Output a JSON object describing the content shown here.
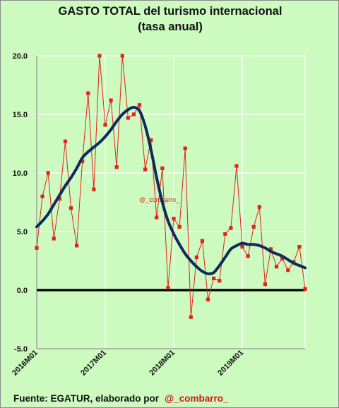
{
  "title_line1": "GASTO TOTAL del turismo internacional",
  "title_line2": "(tasa anual)",
  "watermark": "@_combarro_",
  "footer": {
    "source": "Fuente: EGATUR, elaborado por",
    "handle": "@_combarro_"
  },
  "colors": {
    "background": "#ccfabf",
    "raw_series": "#e2231a",
    "trend_series": "#0e2a5e",
    "zero_line": "#000000",
    "grid": "#ffffff"
  },
  "chart_data": {
    "type": "line",
    "title": "GASTO TOTAL del turismo internacional (tasa anual)",
    "xlabel": "",
    "ylabel": "",
    "ylim": [
      -5,
      20
    ],
    "yticks": [
      "20.0",
      "15.0",
      "10.0",
      "5.0",
      "0.0",
      "-5.0"
    ],
    "xticks": [
      "2016M01",
      "2017M01",
      "2018M01",
      "2019M01"
    ],
    "grid": true,
    "legend": "none",
    "x": [
      "2016M01",
      "2016M02",
      "2016M03",
      "2016M04",
      "2016M05",
      "2016M06",
      "2016M07",
      "2016M08",
      "2016M09",
      "2016M10",
      "2016M11",
      "2016M12",
      "2017M01",
      "2017M02",
      "2017M03",
      "2017M04",
      "2017M05",
      "2017M06",
      "2017M07",
      "2017M08",
      "2017M09",
      "2017M10",
      "2017M11",
      "2017M12",
      "2018M01",
      "2018M02",
      "2018M03",
      "2018M04",
      "2018M05",
      "2018M06",
      "2018M07",
      "2018M08",
      "2018M09",
      "2018M10",
      "2018M11",
      "2018M12",
      "2019M01",
      "2019M02",
      "2019M03",
      "2019M04",
      "2019M05",
      "2019M06",
      "2019M07",
      "2019M08",
      "2019M09",
      "2019M10",
      "2019M11",
      "2019M12"
    ],
    "series": [
      {
        "values": [
          3.6,
          8.0,
          10.0,
          4.4,
          7.8,
          12.7,
          7.0,
          3.8,
          11.0,
          16.8,
          8.6,
          20.0,
          14.1,
          16.2,
          10.5,
          20.0,
          14.7,
          15.0,
          15.8,
          10.3,
          12.8,
          6.2,
          10.4,
          0.2,
          6.1,
          5.4,
          12.1,
          -2.3,
          2.8,
          4.2,
          -0.8,
          1.0,
          0.8,
          4.8,
          5.3,
          10.6,
          3.7,
          2.9,
          5.4,
          7.1,
          0.5,
          3.5,
          2.0,
          2.7,
          1.7,
          2.4,
          3.7,
          0.1
        ]
      },
      {
        "values": [
          5.4,
          5.9,
          6.5,
          7.3,
          8.1,
          8.9,
          9.6,
          10.4,
          11.3,
          11.8,
          12.2,
          12.6,
          13.1,
          13.7,
          14.4,
          15.0,
          15.4,
          15.6,
          15.3,
          14.0,
          12.0,
          9.6,
          7.5,
          5.9,
          4.8,
          3.9,
          3.1,
          2.5,
          2.0,
          1.6,
          1.4,
          1.5,
          2.1,
          2.8,
          3.5,
          3.8,
          4.0,
          3.9,
          3.9,
          3.8,
          3.6,
          3.3,
          3.1,
          2.9,
          2.6,
          2.3,
          2.1,
          1.9
        ]
      }
    ]
  }
}
